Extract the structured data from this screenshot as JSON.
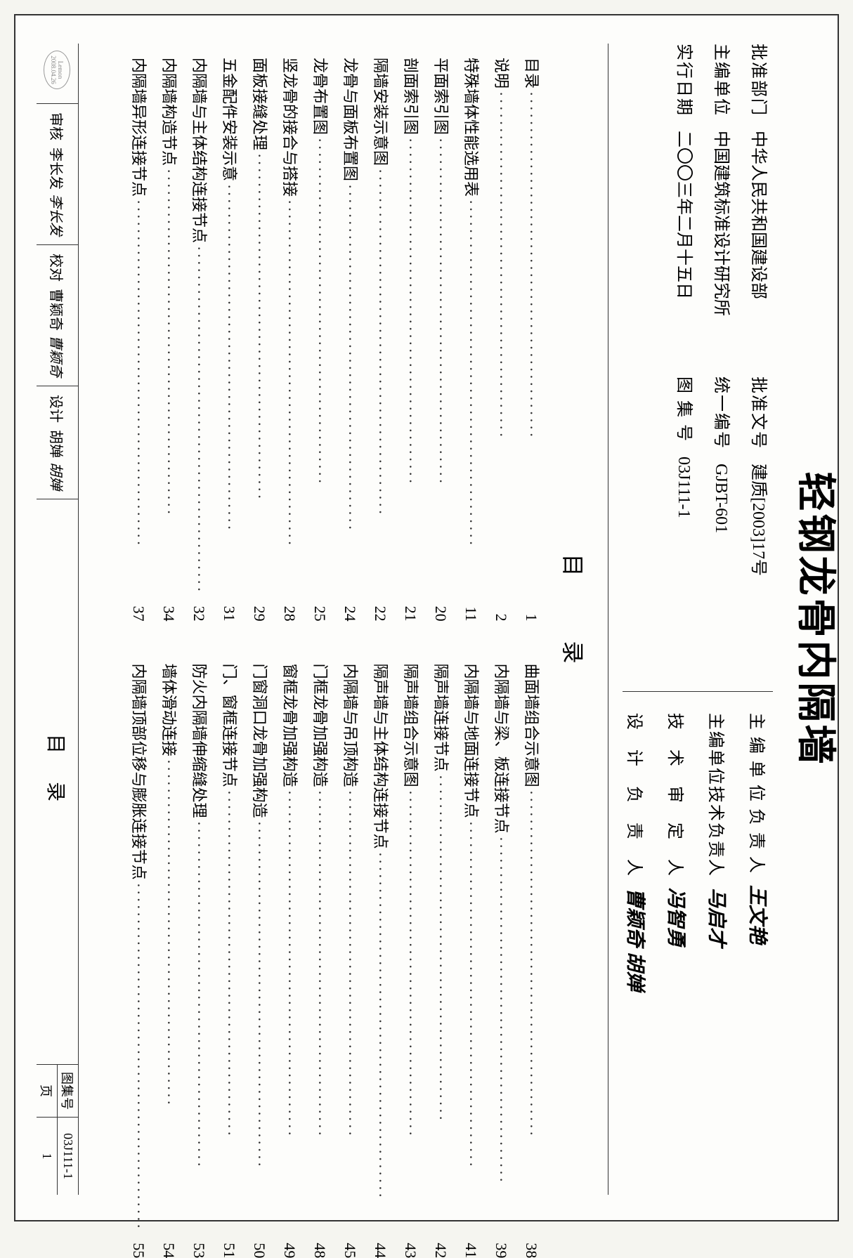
{
  "title": "轻钢龙骨内隔墙",
  "header": {
    "left": [
      {
        "label": "批准部门",
        "value": "中华人民共和国建设部",
        "extra_label": "批准文号",
        "extra_value": "建质[2003]17号"
      },
      {
        "label": "主编单位",
        "value": "中国建筑标准设计研究所",
        "extra_label": "统一编号",
        "extra_value": "GJBT-601"
      },
      {
        "label": "实行日期",
        "value": "二〇〇三年二月十五日",
        "extra_label": "图 集 号",
        "extra_value": "03J111-1"
      }
    ],
    "right": [
      {
        "label": "主 编 单 位 负 责 人",
        "signature": "王文艳"
      },
      {
        "label": "主编单位技术负责人",
        "signature": "马启才"
      },
      {
        "label": "技　术　审　定　人",
        "signature": "冯智勇"
      },
      {
        "label": "设　计　负　责　人",
        "signature": "曹颖奇 胡婵"
      }
    ]
  },
  "toc": {
    "title": "目　录",
    "left": [
      {
        "text": "目录",
        "page": "1"
      },
      {
        "text": "说明",
        "page": "2"
      },
      {
        "text": "特殊墙体性能选用表",
        "page": "11"
      },
      {
        "text": "平面索引图",
        "page": "20"
      },
      {
        "text": "剖面索引图",
        "page": "21"
      },
      {
        "text": "隔墙安装示意图",
        "page": "22"
      },
      {
        "text": "龙骨与面板布置图",
        "page": "24"
      },
      {
        "text": "龙骨布置图",
        "page": "25"
      },
      {
        "text": "竖龙骨的接合与搭接",
        "page": "28"
      },
      {
        "text": "面板接缝处理",
        "page": "29"
      },
      {
        "text": "五金配件安装示意",
        "page": "31"
      },
      {
        "text": "内隔墙与主体结构连接节点",
        "page": "32"
      },
      {
        "text": "内隔墙构造节点",
        "page": "34"
      },
      {
        "text": "内隔墙异形连接节点",
        "page": "37"
      }
    ],
    "right": [
      {
        "text": "曲面墙组合示意图",
        "page": "38"
      },
      {
        "text": "内隔墙与梁、板连接节点",
        "page": "39"
      },
      {
        "text": "内隔墙与地面连接节点",
        "page": "41"
      },
      {
        "text": "隔声墙连接节点",
        "page": "42"
      },
      {
        "text": "隔声墙组合示意图",
        "page": "43"
      },
      {
        "text": "隔声墙与主体结构连接节点",
        "page": "44"
      },
      {
        "text": "内隔墙与吊顶构造",
        "page": "45"
      },
      {
        "text": "门框龙骨加强构造",
        "page": "48"
      },
      {
        "text": "窗框龙骨加强构造",
        "page": "49"
      },
      {
        "text": "门窗洞口龙骨加强构造",
        "page": "50"
      },
      {
        "text": "门、窗框连接节点",
        "page": "51"
      },
      {
        "text": "防火内隔墙伸缩缝处理",
        "page": "53"
      },
      {
        "text": "墙体滑动连接",
        "page": "54"
      },
      {
        "text": "内隔墙顶部位移与膨胀连接节点",
        "page": "55"
      }
    ]
  },
  "footer": {
    "stamp_top": "Lemon",
    "stamp_bottom": "2008.04.26",
    "cells": [
      {
        "label": "审核",
        "name": "李长发",
        "sig": "李长发"
      },
      {
        "label": "校对",
        "name": "曹颖奇",
        "sig": "曹颖奇"
      },
      {
        "label": "设计",
        "name": "胡婵",
        "sig": "胡婵"
      }
    ],
    "center_title": "目录",
    "album_label": "图集号",
    "album_value": "03J111-1",
    "page_label": "页",
    "page_value": "1"
  }
}
